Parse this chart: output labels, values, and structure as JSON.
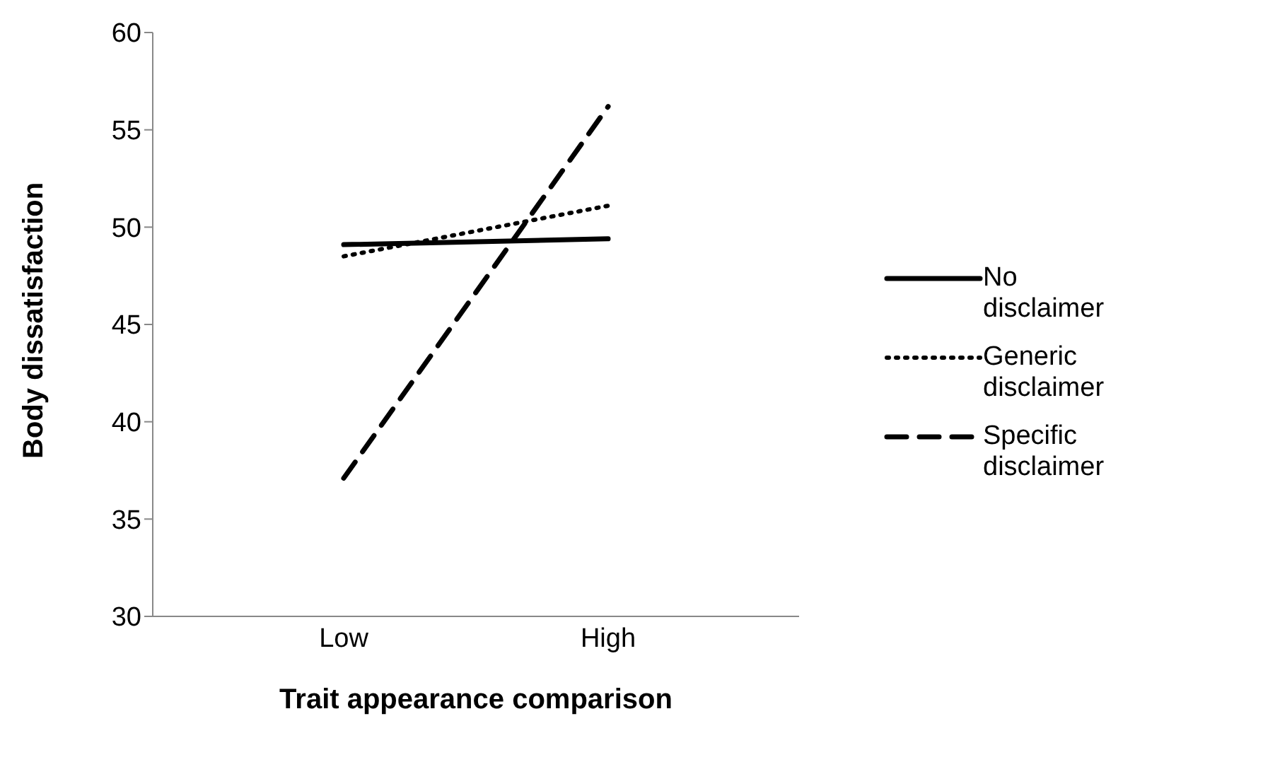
{
  "chart_data": {
    "type": "line",
    "xlabel": "Trait appearance comparison",
    "ylabel": "Body dissatisfaction",
    "categories": [
      "Low",
      "High"
    ],
    "series": [
      {
        "name": "No disclaimer",
        "color": "#000000",
        "values": [
          49.1,
          49.4
        ],
        "line_style": "solid"
      },
      {
        "name": "Generic disclaimer",
        "color": "#000000",
        "values": [
          48.5,
          51.1
        ],
        "line_style": "dotted"
      },
      {
        "name": "Specific disclaimer",
        "color": "#000000",
        "values": [
          37.1,
          56.2
        ],
        "line_style": "dashed"
      }
    ],
    "ylim": [
      30,
      60
    ],
    "yticks": [
      30,
      35,
      40,
      45,
      50,
      55,
      60
    ],
    "grid": false,
    "legend": "right",
    "marker": "none"
  }
}
